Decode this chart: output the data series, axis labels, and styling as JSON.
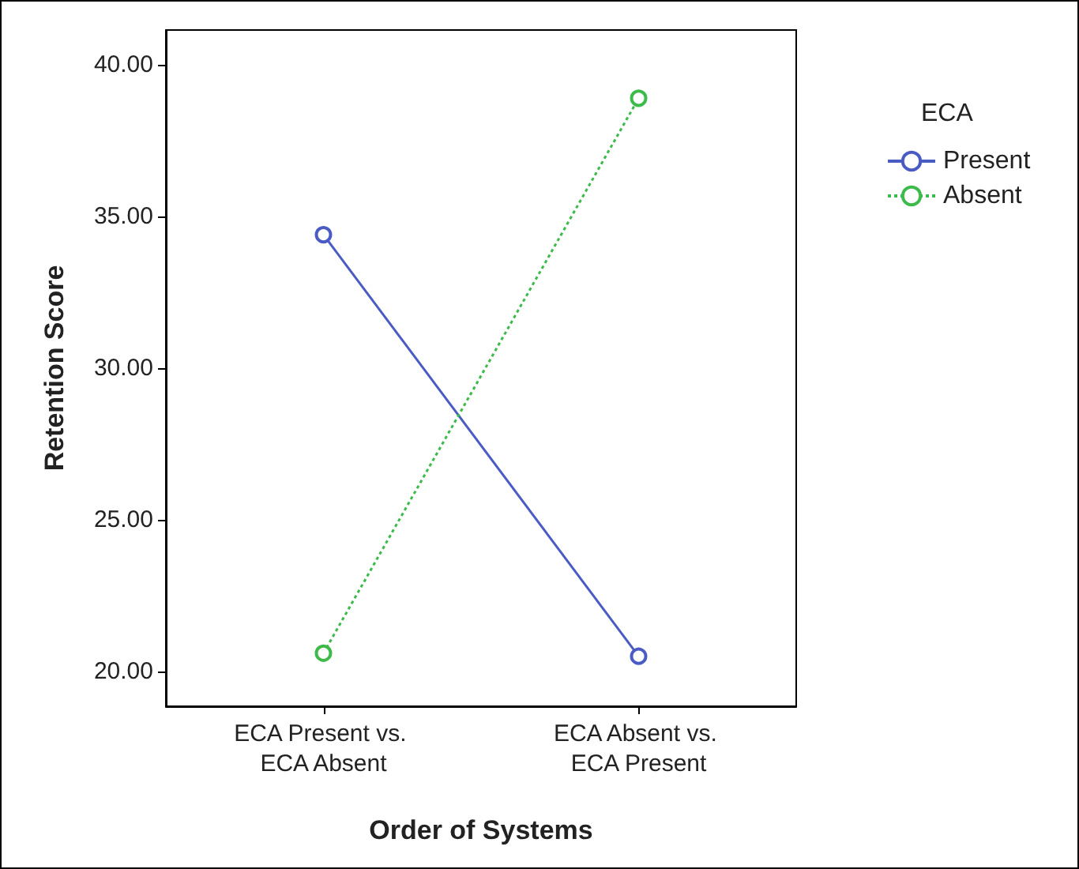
{
  "chart_data": {
    "type": "line",
    "xlabel": "Order of Systems",
    "ylabel": "Retention Score",
    "legend_title": "ECA",
    "categories": [
      "ECA Present vs. ECA Absent",
      "ECA Absent vs. ECA Present"
    ],
    "series": [
      {
        "name": "Present",
        "color": "#4a5cc4",
        "values": [
          34.4,
          20.5
        ],
        "line_style": "solid"
      },
      {
        "name": "Absent",
        "color": "#3cba4a",
        "values": [
          20.6,
          38.9
        ],
        "line_style": "dotted"
      }
    ],
    "ylim": [
      18.85,
      41.15
    ],
    "yticks": [
      {
        "value": 20,
        "label": "20.00"
      },
      {
        "value": 25,
        "label": "25.00"
      },
      {
        "value": 30,
        "label": "30.00"
      },
      {
        "value": 35,
        "label": "35.00"
      },
      {
        "value": 40,
        "label": "40.00"
      }
    ],
    "grid": false,
    "legend": "right",
    "marker": "circle"
  }
}
